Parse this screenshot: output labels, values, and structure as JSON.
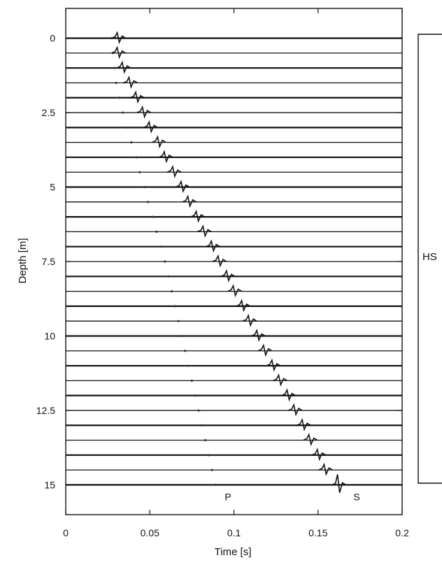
{
  "chart_data": {
    "type": "line",
    "title": "",
    "xlabel": "Time [s]",
    "ylabel": "Depth [m]",
    "xlim": [
      0,
      0.2
    ],
    "ylim": [
      16,
      -1
    ],
    "y_inverted": true,
    "xticks": [
      {
        "value": 0,
        "label": "0"
      },
      {
        "value": 0.05,
        "label": "0.05"
      },
      {
        "value": 0.1,
        "label": "0.1"
      },
      {
        "value": 0.15,
        "label": "0.15"
      },
      {
        "value": 0.2,
        "label": "0.2"
      }
    ],
    "yticks": [
      {
        "value": 0,
        "label": "0"
      },
      {
        "value": 2.5,
        "label": "2.5"
      },
      {
        "value": 5,
        "label": "5"
      },
      {
        "value": 7.5,
        "label": "7.5"
      },
      {
        "value": 10,
        "label": "10"
      },
      {
        "value": 12.5,
        "label": "12.5"
      },
      {
        "value": 15,
        "label": "15"
      }
    ],
    "traces": {
      "depths": [
        0,
        0.5,
        1,
        1.5,
        2,
        2.5,
        3,
        3.5,
        4,
        4.5,
        5,
        5.5,
        6,
        6.5,
        7,
        7.5,
        8,
        8.5,
        9,
        9.5,
        10,
        10.5,
        11,
        11.5,
        12,
        12.5,
        13,
        13.5,
        14,
        14.5,
        15
      ]
    },
    "series": [
      {
        "name": "P",
        "depth": [
          0,
          0.5,
          1,
          1.5,
          2,
          2.5,
          3,
          3.5,
          4,
          4.5,
          5,
          5.5,
          6,
          6.5,
          7,
          7.5,
          8,
          8.5,
          9,
          9.5,
          10,
          10.5,
          11,
          11.5,
          12,
          12.5,
          13,
          13.5,
          14,
          14.5,
          15
        ],
        "time": [
          0.027,
          0.028,
          0.029,
          0.03,
          0.032,
          0.034,
          0.037,
          0.039,
          0.042,
          0.044,
          0.047,
          0.049,
          0.052,
          0.054,
          0.057,
          0.059,
          0.061,
          0.063,
          0.065,
          0.067,
          0.069,
          0.071,
          0.073,
          0.075,
          0.077,
          0.079,
          0.081,
          0.083,
          0.085,
          0.087,
          0.089
        ]
      },
      {
        "name": "S",
        "depth": [
          0,
          0.5,
          1,
          1.5,
          2,
          2.5,
          3,
          3.5,
          4,
          4.5,
          5,
          5.5,
          6,
          6.5,
          7,
          7.5,
          8,
          8.5,
          9,
          9.5,
          10,
          10.5,
          11,
          11.5,
          12,
          12.5,
          13,
          13.5,
          14,
          14.5,
          15
        ],
        "time": [
          0.031,
          0.031,
          0.034,
          0.038,
          0.042,
          0.046,
          0.05,
          0.055,
          0.059,
          0.064,
          0.069,
          0.073,
          0.078,
          0.082,
          0.087,
          0.091,
          0.096,
          0.1,
          0.105,
          0.109,
          0.114,
          0.118,
          0.123,
          0.127,
          0.132,
          0.136,
          0.141,
          0.145,
          0.15,
          0.154,
          0.162
        ]
      }
    ],
    "annotations": [
      {
        "text": "P",
        "x": 0.0965,
        "y": 15.4
      },
      {
        "text": "S",
        "x": 0.173,
        "y": 15.4
      }
    ],
    "side_label": "HS"
  }
}
